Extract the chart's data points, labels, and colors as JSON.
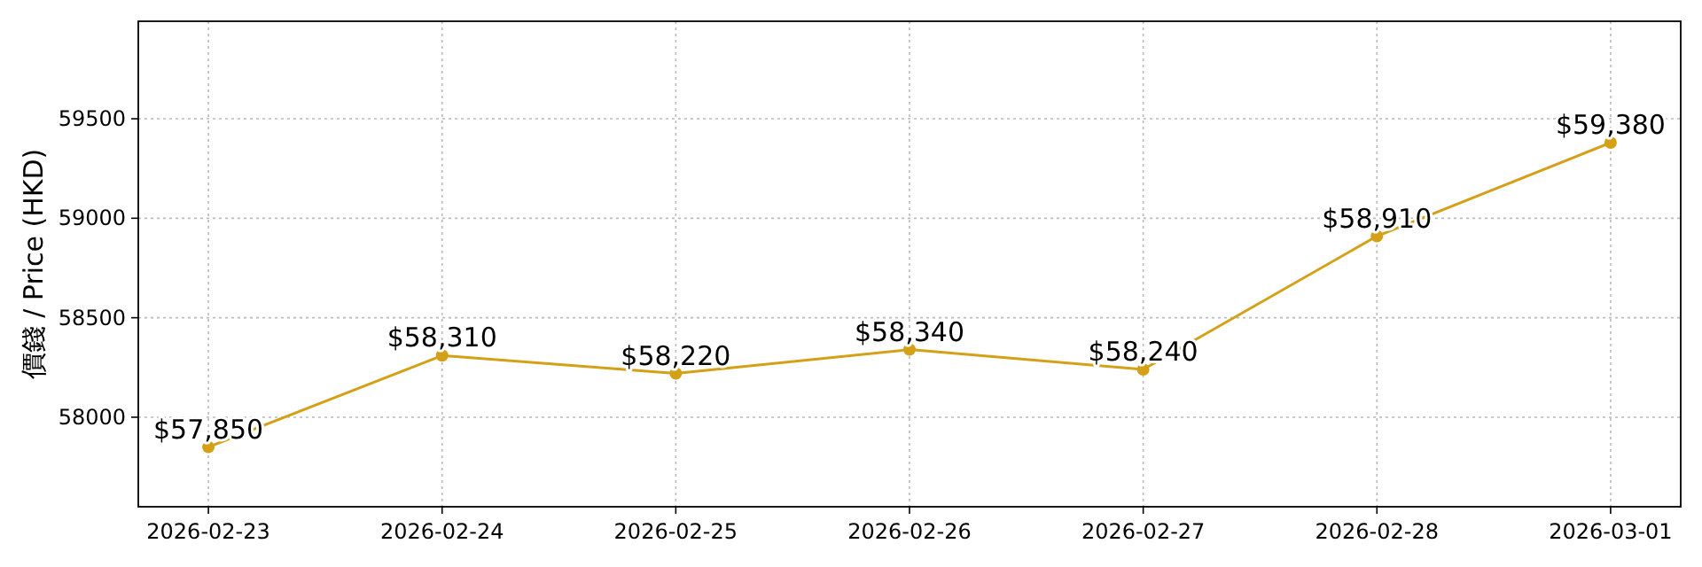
{
  "chart_data": {
    "type": "line",
    "ylabel": "價錢 / Price (HKD)",
    "x": [
      "2026-02-23",
      "2026-02-24",
      "2026-02-25",
      "2026-02-26",
      "2026-02-27",
      "2026-02-28",
      "2026-03-01"
    ],
    "series": [
      {
        "color": "#d4a017",
        "values": [
          57850,
          58310,
          58220,
          58340,
          58240,
          58910,
          59380
        ],
        "value_labels": [
          "$57,850",
          "$58,310",
          "$58,220",
          "$58,340",
          "$58,240",
          "$58,910",
          "$59,380"
        ]
      }
    ],
    "xlim": [
      "2026-02-22T16:48",
      "2026-03-01T07:12"
    ],
    "xticks": [
      "2026-02-23",
      "2026-02-24",
      "2026-02-25",
      "2026-02-26",
      "2026-02-27",
      "2026-02-28",
      "2026-03-01"
    ],
    "ylim": [
      57550,
      59990
    ],
    "yticks": [
      58000,
      58500,
      59000,
      59500
    ],
    "grid": true,
    "marker": "circle",
    "line_style": "solid"
  }
}
